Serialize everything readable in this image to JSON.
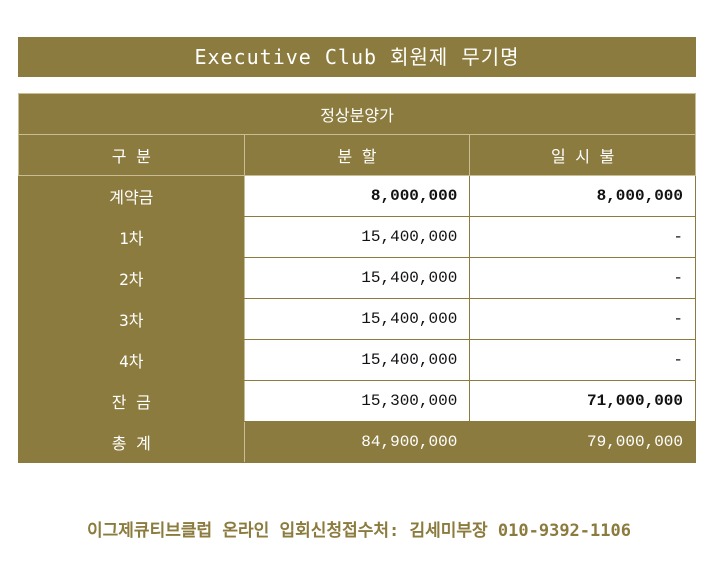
{
  "header": {
    "title": "Executive Club 회원제 무기명"
  },
  "table": {
    "caption": "정상분양가",
    "headers": [
      "구  분",
      "분  할",
      "일 시 불"
    ],
    "rows": [
      [
        "계약금",
        "8,000,000",
        "8,000,000"
      ],
      [
        "1차",
        "15,400,000",
        "-"
      ],
      [
        "2차",
        "15,400,000",
        "-"
      ],
      [
        "3차",
        "15,400,000",
        "-"
      ],
      [
        "4차",
        "15,400,000",
        "-"
      ],
      [
        "잔  금",
        "15,300,000",
        "71,000,000"
      ],
      [
        "총  계",
        "84,900,000",
        "79,000,000"
      ]
    ]
  },
  "footer": {
    "text": "이그제큐티브클럽 온라인 입회신청접수처: 김세미부장 010-9392-1106"
  }
}
